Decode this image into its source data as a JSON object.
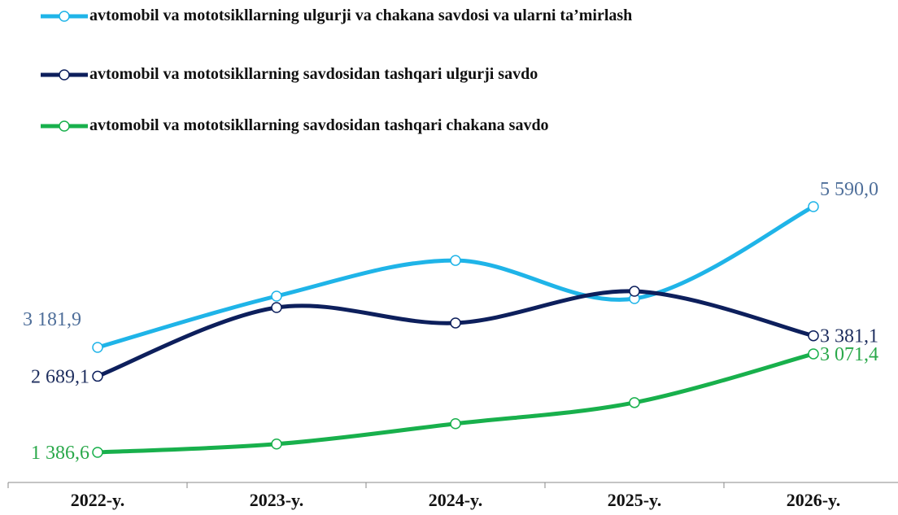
{
  "chart_data": {
    "type": "line",
    "categories": [
      "2022-y.",
      "2023-y.",
      "2024-y.",
      "2025-y.",
      "2026-y."
    ],
    "series": [
      {
        "name": "avtomobil va mototsikllarning ulgurji va chakana savdosi va ularni ta’mirlash",
        "color": "#1fb4e8",
        "label_color": "#4f6f9a",
        "values": [
          3181.9,
          4059,
          4670,
          4017,
          5590.0
        ],
        "value_labels": [
          "3 181,9",
          null,
          null,
          null,
          "5 590,0"
        ]
      },
      {
        "name": "avtomobil va mototsikllarning savdosidan tashqari ulgurji savdo",
        "color": "#0d1f5c",
        "label_color": "#1f2f5f",
        "values": [
          2689.1,
          3864,
          3600,
          4142,
          3381.1
        ],
        "value_labels": [
          "2 689,1",
          null,
          null,
          null,
          "3 381,1"
        ]
      },
      {
        "name": "avtomobil va mototsikllarning savdosidan tashqari chakana savdo",
        "color": "#18b04c",
        "label_color": "#2aa84a",
        "values": [
          1386.6,
          1529,
          1877,
          2238,
          3071.4
        ],
        "value_labels": [
          "1 386,6",
          null,
          null,
          null,
          "3 071,4"
        ]
      }
    ]
  }
}
